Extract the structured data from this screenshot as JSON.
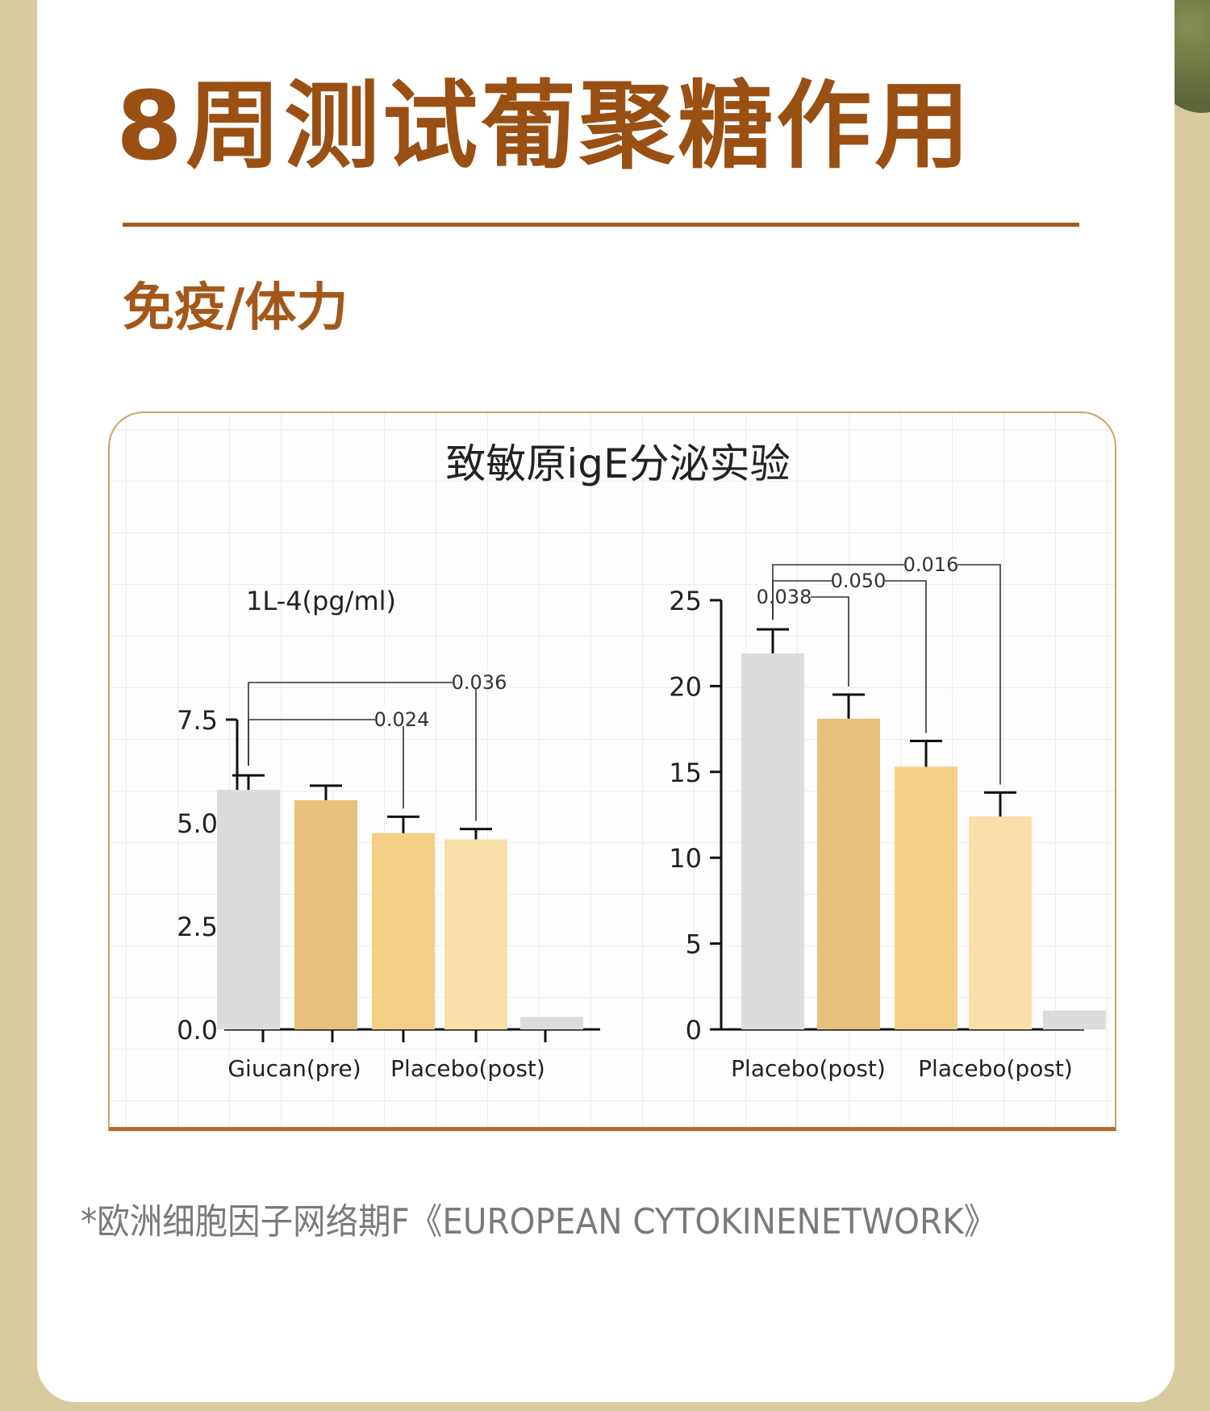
{
  "header": {
    "title": "8周测试葡聚糖作用",
    "subtitle": "免疫/体力"
  },
  "chart_title": "致敏原igE分泌实验",
  "footnote": "*欧洲细胞因子网络期F《EUROPEAN CYTOKINENETWORK》",
  "colors": {
    "title": "#9a4f13",
    "bar_gray": "#dcdcdc",
    "bar_tan": "#e6c07c",
    "bar_light_orange": "#f6cf86",
    "bar_pale": "#fbdfa8",
    "frame": "#b86a26"
  },
  "chart_data": [
    {
      "type": "bar",
      "ylabel": "1L-4(pg/ml)",
      "ylim": [
        0,
        7.5
      ],
      "yticks": [
        "0.0",
        "2.5",
        "5.0",
        "7.5"
      ],
      "x_tick_labels": [
        "Giucan(pre)",
        "Placebo(post)"
      ],
      "bars": [
        {
          "value": 5.8,
          "error": 0.35,
          "color": "#dcdcdc"
        },
        {
          "value": 5.55,
          "error": 0.35,
          "color": "#e6c07c"
        },
        {
          "value": 4.75,
          "error": 0.4,
          "color": "#f6cf86"
        },
        {
          "value": 4.6,
          "error": 0.25,
          "color": "#fbdfa8"
        },
        {
          "value": 0.3,
          "error": 0,
          "color": "#dcdcdc"
        }
      ],
      "significance": [
        {
          "from": 0,
          "to": 2,
          "label": "0.024"
        },
        {
          "from": 0,
          "to": 3,
          "label": "0.036"
        }
      ],
      "grid": false,
      "legend": "none"
    },
    {
      "type": "bar",
      "ylabel": "",
      "ylim": [
        0,
        25
      ],
      "yticks": [
        "0",
        "5",
        "10",
        "15",
        "20",
        "25"
      ],
      "x_tick_labels": [
        "Placebo(post)",
        "Placebo(post)"
      ],
      "bars": [
        {
          "value": 21.9,
          "error": 1.4,
          "color": "#dcdcdc"
        },
        {
          "value": 18.1,
          "error": 1.4,
          "color": "#e6c07c"
        },
        {
          "value": 15.3,
          "error": 1.5,
          "color": "#f6cf86"
        },
        {
          "value": 12.4,
          "error": 1.4,
          "color": "#fbdfa8"
        },
        {
          "value": 1.1,
          "error": 0,
          "color": "#dcdcdc"
        }
      ],
      "significance": [
        {
          "from": 0,
          "to": 1,
          "label": "0.038"
        },
        {
          "from": 0,
          "to": 2,
          "label": "0.050"
        },
        {
          "from": 0,
          "to": 3,
          "label": "0.016"
        }
      ],
      "grid": false,
      "legend": "none"
    }
  ]
}
